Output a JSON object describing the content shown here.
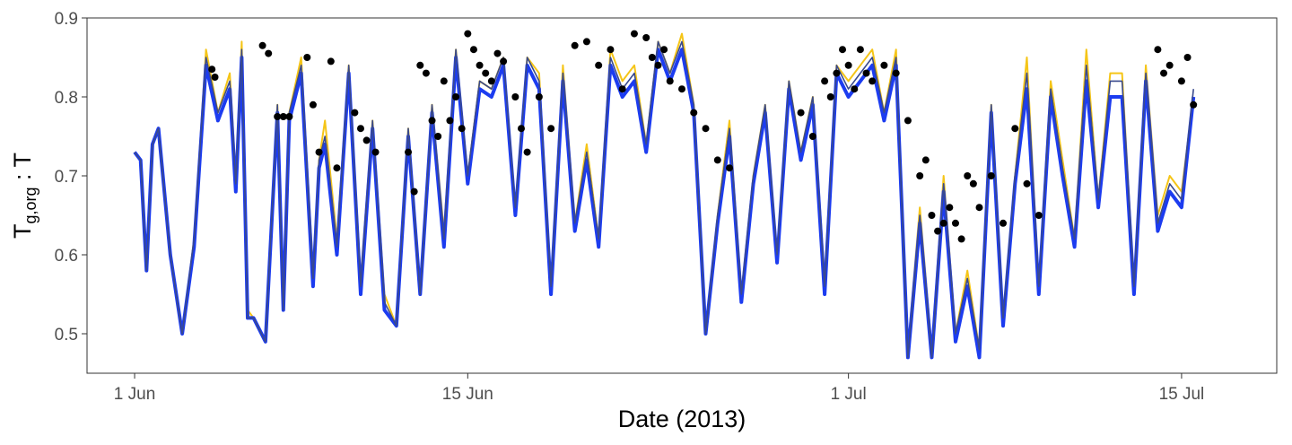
{
  "chart_data": {
    "type": "line",
    "title": "",
    "xlabel": "Date (2013)",
    "ylabel": {
      "main": "T",
      "subscript": "g,org",
      "suffix": " : T"
    },
    "xlim": [
      "2013-05-30",
      "2013-07-19"
    ],
    "ylim": [
      0.45,
      0.9
    ],
    "x_ticks": [
      {
        "date": "2013-06-01",
        "label": "1 Jun"
      },
      {
        "date": "2013-06-15",
        "label": "15 Jun"
      },
      {
        "date": "2013-07-01",
        "label": "1 Jul"
      },
      {
        "date": "2013-07-15",
        "label": "15 Jul"
      }
    ],
    "y_ticks": [
      0.5,
      0.6,
      0.7,
      0.8,
      0.9
    ],
    "y_tick_labels": [
      "0.5",
      "0.6",
      "0.7",
      "0.8",
      "0.9"
    ],
    "grid": false,
    "legend": "none",
    "colors": {
      "yellow": "#f5c518",
      "blue": "#1c3cf0",
      "navy": "#3a4a8c",
      "points": "#000000"
    },
    "series": [
      {
        "kind": "line",
        "color": "yellow",
        "x": [
          "2013-06-01",
          "2013-06-01T06:00",
          "2013-06-01T12:00",
          "2013-06-01T18:00",
          "2013-06-02",
          "2013-06-02T12:00",
          "2013-06-03",
          "2013-06-03T12:00",
          "2013-06-04",
          "2013-06-04T12:00",
          "2013-06-05",
          "2013-06-05T06:00",
          "2013-06-05T12:00",
          "2013-06-05T18:00",
          "2013-06-06",
          "2013-06-06T12:00",
          "2013-06-07",
          "2013-06-07T06:00",
          "2013-06-07T12:00",
          "2013-06-08",
          "2013-06-08T12:00",
          "2013-06-08T18:00",
          "2013-06-09",
          "2013-06-09T12:00",
          "2013-06-10",
          "2013-06-10T12:00",
          "2013-06-11",
          "2013-06-11T12:00",
          "2013-06-12",
          "2013-06-12T12:00",
          "2013-06-13",
          "2013-06-13T12:00",
          "2013-06-14",
          "2013-06-14T12:00",
          "2013-06-15",
          "2013-06-15T12:00",
          "2013-06-16",
          "2013-06-16T12:00",
          "2013-06-17",
          "2013-06-17T12:00",
          "2013-06-18",
          "2013-06-18T12:00",
          "2013-06-19",
          "2013-06-19T12:00",
          "2013-06-20",
          "2013-06-20T12:00",
          "2013-06-21",
          "2013-06-21T12:00",
          "2013-06-22",
          "2013-06-22T12:00",
          "2013-06-23",
          "2013-06-23T12:00",
          "2013-06-24",
          "2013-06-24T12:00",
          "2013-06-25",
          "2013-06-25T12:00",
          "2013-06-26",
          "2013-06-26T12:00",
          "2013-06-27",
          "2013-06-27T12:00",
          "2013-06-28",
          "2013-06-28T12:00",
          "2013-06-29",
          "2013-06-29T12:00",
          "2013-06-30",
          "2013-06-30T12:00",
          "2013-07-01",
          "2013-07-01T12:00",
          "2013-07-02",
          "2013-07-02T12:00",
          "2013-07-03",
          "2013-07-03T12:00",
          "2013-07-04",
          "2013-07-04T12:00",
          "2013-07-05",
          "2013-07-05T12:00",
          "2013-07-06",
          "2013-07-06T12:00",
          "2013-07-07",
          "2013-07-07T12:00",
          "2013-07-08",
          "2013-07-08T12:00",
          "2013-07-09",
          "2013-07-09T12:00",
          "2013-07-10",
          "2013-07-10T12:00",
          "2013-07-11",
          "2013-07-11T12:00",
          "2013-07-12",
          "2013-07-12T12:00",
          "2013-07-13",
          "2013-07-13T12:00",
          "2013-07-14",
          "2013-07-14T12:00",
          "2013-07-15",
          "2013-07-15T12:00"
        ],
        "values": [
          0.73,
          0.72,
          0.58,
          0.74,
          0.76,
          0.6,
          0.5,
          0.62,
          0.86,
          0.78,
          0.83,
          0.7,
          0.87,
          0.53,
          0.52,
          0.49,
          0.79,
          0.54,
          0.78,
          0.85,
          0.58,
          0.72,
          0.77,
          0.62,
          0.84,
          0.57,
          0.77,
          0.55,
          0.51,
          0.76,
          0.56,
          0.79,
          0.63,
          0.86,
          0.7,
          0.82,
          0.81,
          0.85,
          0.66,
          0.85,
          0.83,
          0.56,
          0.84,
          0.64,
          0.74,
          0.62,
          0.86,
          0.82,
          0.84,
          0.74,
          0.87,
          0.83,
          0.88,
          0.79,
          0.5,
          0.65,
          0.77,
          0.55,
          0.7,
          0.79,
          0.6,
          0.82,
          0.73,
          0.8,
          0.57,
          0.84,
          0.82,
          0.84,
          0.86,
          0.78,
          0.86,
          0.48,
          0.66,
          0.48,
          0.7,
          0.5,
          0.58,
          0.48,
          0.79,
          0.52,
          0.7,
          0.85,
          0.56,
          0.82,
          0.72,
          0.62,
          0.86,
          0.67,
          0.83,
          0.83,
          0.56,
          0.84,
          0.65,
          0.7,
          0.68,
          0.8
        ],
        "x_note": "dates at 12-hour steps"
      },
      {
        "kind": "line",
        "color": "blue",
        "x": [
          "2013-06-01",
          "2013-06-01T06:00",
          "2013-06-01T12:00",
          "2013-06-01T18:00",
          "2013-06-02",
          "2013-06-02T12:00",
          "2013-06-03",
          "2013-06-03T12:00",
          "2013-06-04",
          "2013-06-04T12:00",
          "2013-06-05",
          "2013-06-05T06:00",
          "2013-06-05T12:00",
          "2013-06-05T18:00",
          "2013-06-06",
          "2013-06-06T12:00",
          "2013-06-07",
          "2013-06-07T06:00",
          "2013-06-07T12:00",
          "2013-06-08",
          "2013-06-08T12:00",
          "2013-06-08T18:00",
          "2013-06-09",
          "2013-06-09T12:00",
          "2013-06-10",
          "2013-06-10T12:00",
          "2013-06-11",
          "2013-06-11T12:00",
          "2013-06-12",
          "2013-06-12T12:00",
          "2013-06-13",
          "2013-06-13T12:00",
          "2013-06-14",
          "2013-06-14T12:00",
          "2013-06-15",
          "2013-06-15T12:00",
          "2013-06-16",
          "2013-06-16T12:00",
          "2013-06-17",
          "2013-06-17T12:00",
          "2013-06-18",
          "2013-06-18T12:00",
          "2013-06-19",
          "2013-06-19T12:00",
          "2013-06-20",
          "2013-06-20T12:00",
          "2013-06-21",
          "2013-06-21T12:00",
          "2013-06-22",
          "2013-06-22T12:00",
          "2013-06-23",
          "2013-06-23T12:00",
          "2013-06-24",
          "2013-06-24T12:00",
          "2013-06-25",
          "2013-06-25T12:00",
          "2013-06-26",
          "2013-06-26T12:00",
          "2013-06-27",
          "2013-06-27T12:00",
          "2013-06-28",
          "2013-06-28T12:00",
          "2013-06-29",
          "2013-06-29T12:00",
          "2013-06-30",
          "2013-06-30T12:00",
          "2013-07-01",
          "2013-07-01T12:00",
          "2013-07-02",
          "2013-07-02T12:00",
          "2013-07-03",
          "2013-07-03T12:00",
          "2013-07-04",
          "2013-07-04T12:00",
          "2013-07-05",
          "2013-07-05T12:00",
          "2013-07-06",
          "2013-07-06T12:00",
          "2013-07-07",
          "2013-07-07T12:00",
          "2013-07-08",
          "2013-07-08T12:00",
          "2013-07-09",
          "2013-07-09T12:00",
          "2013-07-10",
          "2013-07-10T12:00",
          "2013-07-11",
          "2013-07-11T12:00",
          "2013-07-12",
          "2013-07-12T12:00",
          "2013-07-13",
          "2013-07-13T12:00",
          "2013-07-14",
          "2013-07-14T12:00",
          "2013-07-15",
          "2013-07-15T12:00"
        ],
        "values": [
          0.73,
          0.72,
          0.58,
          0.74,
          0.76,
          0.6,
          0.5,
          0.61,
          0.84,
          0.77,
          0.81,
          0.68,
          0.85,
          0.52,
          0.52,
          0.49,
          0.78,
          0.53,
          0.77,
          0.83,
          0.56,
          0.71,
          0.74,
          0.6,
          0.83,
          0.55,
          0.76,
          0.53,
          0.51,
          0.75,
          0.55,
          0.78,
          0.61,
          0.85,
          0.69,
          0.81,
          0.8,
          0.84,
          0.65,
          0.84,
          0.81,
          0.55,
          0.82,
          0.63,
          0.72,
          0.61,
          0.84,
          0.8,
          0.82,
          0.73,
          0.86,
          0.82,
          0.86,
          0.78,
          0.5,
          0.64,
          0.75,
          0.54,
          0.69,
          0.78,
          0.59,
          0.81,
          0.72,
          0.79,
          0.55,
          0.83,
          0.8,
          0.82,
          0.84,
          0.77,
          0.84,
          0.47,
          0.64,
          0.47,
          0.68,
          0.49,
          0.56,
          0.47,
          0.78,
          0.51,
          0.69,
          0.81,
          0.55,
          0.8,
          0.7,
          0.61,
          0.82,
          0.66,
          0.8,
          0.8,
          0.55,
          0.82,
          0.63,
          0.68,
          0.66,
          0.8
        ]
      },
      {
        "kind": "line",
        "color": "navy",
        "x": [
          "2013-06-01",
          "2013-06-01T06:00",
          "2013-06-01T12:00",
          "2013-06-01T18:00",
          "2013-06-02",
          "2013-06-02T12:00",
          "2013-06-03",
          "2013-06-03T12:00",
          "2013-06-04",
          "2013-06-04T12:00",
          "2013-06-05",
          "2013-06-05T06:00",
          "2013-06-05T12:00",
          "2013-06-05T18:00",
          "2013-06-06",
          "2013-06-06T12:00",
          "2013-06-07",
          "2013-06-07T06:00",
          "2013-06-07T12:00",
          "2013-06-08",
          "2013-06-08T12:00",
          "2013-06-08T18:00",
          "2013-06-09",
          "2013-06-09T12:00",
          "2013-06-10",
          "2013-06-10T12:00",
          "2013-06-11",
          "2013-06-11T12:00",
          "2013-06-12",
          "2013-06-12T12:00",
          "2013-06-13",
          "2013-06-13T12:00",
          "2013-06-14",
          "2013-06-14T12:00",
          "2013-06-15",
          "2013-06-15T12:00",
          "2013-06-16",
          "2013-06-16T12:00",
          "2013-06-17",
          "2013-06-17T12:00",
          "2013-06-18",
          "2013-06-18T12:00",
          "2013-06-19",
          "2013-06-19T12:00",
          "2013-06-20",
          "2013-06-20T12:00",
          "2013-06-21",
          "2013-06-21T12:00",
          "2013-06-22",
          "2013-06-22T12:00",
          "2013-06-23",
          "2013-06-23T12:00",
          "2013-06-24",
          "2013-06-24T12:00",
          "2013-06-25",
          "2013-06-25T12:00",
          "2013-06-26",
          "2013-06-26T12:00",
          "2013-06-27",
          "2013-06-27T12:00",
          "2013-06-28",
          "2013-06-28T12:00",
          "2013-06-29",
          "2013-06-29T12:00",
          "2013-06-30",
          "2013-06-30T12:00",
          "2013-07-01",
          "2013-07-01T12:00",
          "2013-07-02",
          "2013-07-02T12:00",
          "2013-07-03",
          "2013-07-03T12:00",
          "2013-07-04",
          "2013-07-04T12:00",
          "2013-07-05",
          "2013-07-05T12:00",
          "2013-07-06",
          "2013-07-06T12:00",
          "2013-07-07",
          "2013-07-07T12:00",
          "2013-07-08",
          "2013-07-08T12:00",
          "2013-07-09",
          "2013-07-09T12:00",
          "2013-07-10",
          "2013-07-10T12:00",
          "2013-07-11",
          "2013-07-11T12:00",
          "2013-07-12",
          "2013-07-12T12:00",
          "2013-07-13",
          "2013-07-13T12:00",
          "2013-07-14",
          "2013-07-14T12:00",
          "2013-07-15",
          "2013-07-15T12:00"
        ],
        "values": [
          0.73,
          0.72,
          0.58,
          0.74,
          0.76,
          0.6,
          0.5,
          0.62,
          0.85,
          0.78,
          0.82,
          0.69,
          0.86,
          0.52,
          0.52,
          0.49,
          0.79,
          0.53,
          0.78,
          0.84,
          0.57,
          0.72,
          0.75,
          0.61,
          0.84,
          0.56,
          0.77,
          0.54,
          0.51,
          0.76,
          0.55,
          0.79,
          0.62,
          0.86,
          0.7,
          0.82,
          0.81,
          0.85,
          0.66,
          0.85,
          0.82,
          0.56,
          0.83,
          0.64,
          0.73,
          0.62,
          0.85,
          0.81,
          0.83,
          0.74,
          0.87,
          0.83,
          0.87,
          0.79,
          0.5,
          0.65,
          0.76,
          0.55,
          0.7,
          0.79,
          0.6,
          0.82,
          0.73,
          0.8,
          0.56,
          0.84,
          0.81,
          0.83,
          0.85,
          0.78,
          0.85,
          0.47,
          0.65,
          0.47,
          0.69,
          0.5,
          0.57,
          0.48,
          0.79,
          0.52,
          0.7,
          0.83,
          0.56,
          0.81,
          0.71,
          0.62,
          0.84,
          0.67,
          0.82,
          0.82,
          0.56,
          0.83,
          0.64,
          0.69,
          0.67,
          0.81
        ]
      },
      {
        "kind": "scatter",
        "color": "points",
        "x": [
          "2013-06-04T06:00",
          "2013-06-04T09:00",
          "2013-06-06T09:00",
          "2013-06-06T15:00",
          "2013-06-07T00:00",
          "2013-06-07T06:00",
          "2013-06-07T12:00",
          "2013-06-08T06:00",
          "2013-06-08T12:00",
          "2013-06-08T18:00",
          "2013-06-09T06:00",
          "2013-06-09T12:00",
          "2013-06-10T06:00",
          "2013-06-10T12:00",
          "2013-06-10T18:00",
          "2013-06-11T03:00",
          "2013-06-12T12:00",
          "2013-06-12T18:00",
          "2013-06-13T00:00",
          "2013-06-13T06:00",
          "2013-06-13T12:00",
          "2013-06-13T18:00",
          "2013-06-14T00:00",
          "2013-06-14T06:00",
          "2013-06-14T12:00",
          "2013-06-14T18:00",
          "2013-06-15T00:00",
          "2013-06-15T06:00",
          "2013-06-15T12:00",
          "2013-06-15T18:00",
          "2013-06-16T00:00",
          "2013-06-16T06:00",
          "2013-06-16T12:00",
          "2013-06-17T00:00",
          "2013-06-17T06:00",
          "2013-06-17T12:00",
          "2013-06-18T00:00",
          "2013-06-18T12:00",
          "2013-06-19T12:00",
          "2013-06-20T00:00",
          "2013-06-20T12:00",
          "2013-06-21T00:00",
          "2013-06-21T12:00",
          "2013-06-22T00:00",
          "2013-06-22T12:00",
          "2013-06-22T18:00",
          "2013-06-23T00:00",
          "2013-06-23T06:00",
          "2013-06-23T12:00",
          "2013-06-24T00:00",
          "2013-06-24T12:00",
          "2013-06-25T00:00",
          "2013-06-25T12:00",
          "2013-06-26T00:00",
          "2013-06-29T00:00",
          "2013-06-29T12:00",
          "2013-06-30T00:00",
          "2013-06-30T06:00",
          "2013-06-30T12:00",
          "2013-06-30T18:00",
          "2013-07-01T00:00",
          "2013-07-01T06:00",
          "2013-07-01T12:00",
          "2013-07-01T18:00",
          "2013-07-02T00:00",
          "2013-07-02T12:00",
          "2013-07-03T00:00",
          "2013-07-03T12:00",
          "2013-07-04T00:00",
          "2013-07-04T06:00",
          "2013-07-04T12:00",
          "2013-07-04T18:00",
          "2013-07-05T00:00",
          "2013-07-05T06:00",
          "2013-07-05T12:00",
          "2013-07-05T18:00",
          "2013-07-06T00:00",
          "2013-07-06T06:00",
          "2013-07-06T12:00",
          "2013-07-07T00:00",
          "2013-07-07T12:00",
          "2013-07-08T00:00",
          "2013-07-08T12:00",
          "2013-07-09T00:00",
          "2013-07-14T00:00",
          "2013-07-14T06:00",
          "2013-07-14T12:00",
          "2013-07-15T00:00",
          "2013-07-15T06:00",
          "2013-07-15T12:00"
        ],
        "values": [
          0.835,
          0.825,
          0.865,
          0.855,
          0.775,
          0.775,
          0.775,
          0.85,
          0.79,
          0.73,
          0.845,
          0.71,
          0.78,
          0.76,
          0.745,
          0.73,
          0.73,
          0.68,
          0.84,
          0.83,
          0.77,
          0.75,
          0.82,
          0.77,
          0.8,
          0.76,
          0.88,
          0.86,
          0.84,
          0.83,
          0.82,
          0.855,
          0.845,
          0.8,
          0.76,
          0.73,
          0.8,
          0.76,
          0.865,
          0.87,
          0.84,
          0.86,
          0.81,
          0.88,
          0.875,
          0.85,
          0.84,
          0.86,
          0.82,
          0.81,
          0.78,
          0.76,
          0.72,
          0.71,
          0.78,
          0.75,
          0.82,
          0.8,
          0.83,
          0.86,
          0.84,
          0.81,
          0.86,
          0.83,
          0.82,
          0.84,
          0.83,
          0.77,
          0.7,
          0.72,
          0.65,
          0.63,
          0.64,
          0.66,
          0.64,
          0.62,
          0.7,
          0.69,
          0.66,
          0.7,
          0.64,
          0.76,
          0.69,
          0.65,
          0.86,
          0.83,
          0.84,
          0.82,
          0.85,
          0.79
        ],
        "size": 4
      }
    ]
  }
}
